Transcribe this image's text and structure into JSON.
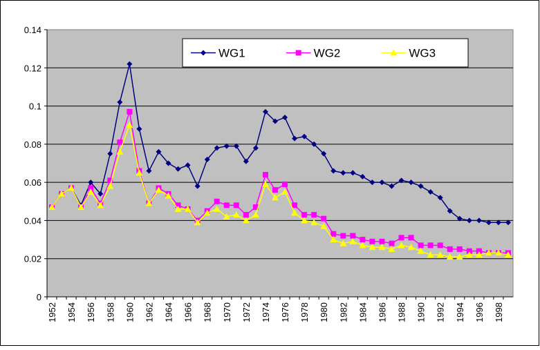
{
  "chart_data": {
    "type": "line",
    "categories": [
      "1952",
      null,
      "1954",
      null,
      "1956",
      null,
      "1958",
      null,
      "1960",
      null,
      "1962",
      null,
      "1964",
      null,
      "1966",
      null,
      "1968",
      null,
      "1970",
      null,
      "1972",
      null,
      "1974",
      null,
      "1976",
      null,
      "1978",
      null,
      "1980",
      null,
      "1982",
      null,
      "1984",
      null,
      "1986",
      null,
      "1988",
      null,
      "1990",
      null,
      "1992",
      null,
      "1994",
      null,
      "1996",
      null,
      "1998",
      null
    ],
    "series": [
      {
        "name": "WG1",
        "color": "#000080",
        "marker": "diamond",
        "values": [
          0.047,
          0.054,
          0.057,
          0.048,
          0.06,
          0.054,
          0.075,
          0.102,
          0.122,
          0.088,
          0.066,
          0.076,
          0.07,
          0.067,
          0.069,
          0.058,
          0.072,
          0.078,
          0.079,
          0.079,
          0.071,
          0.078,
          0.097,
          0.092,
          0.094,
          0.083,
          0.084,
          0.08,
          0.075,
          0.066,
          0.065,
          0.065,
          0.063,
          0.06,
          0.06,
          0.058,
          0.061,
          0.06,
          0.058,
          0.055,
          0.052,
          0.045,
          0.041,
          0.04,
          0.04,
          0.039,
          0.039,
          0.039
        ]
      },
      {
        "name": "WG2",
        "color": "#ff00ff",
        "marker": "square",
        "values": [
          0.047,
          0.054,
          0.057,
          0.047,
          0.057,
          0.049,
          0.061,
          0.081,
          0.097,
          0.066,
          0.049,
          0.057,
          0.054,
          0.048,
          0.046,
          0.04,
          0.045,
          0.05,
          0.048,
          0.048,
          0.043,
          0.047,
          0.064,
          0.056,
          0.059,
          0.048,
          0.043,
          0.043,
          0.041,
          0.033,
          0.032,
          0.032,
          0.03,
          0.029,
          0.029,
          0.028,
          0.031,
          0.031,
          0.027,
          0.027,
          0.027,
          0.025,
          0.025,
          0.024,
          0.024,
          0.023,
          0.023,
          0.023
        ]
      },
      {
        "name": "WG3",
        "color": "#ffff00",
        "marker": "triangle",
        "values": [
          0.047,
          0.054,
          0.057,
          0.047,
          0.055,
          0.048,
          0.058,
          0.076,
          0.09,
          0.065,
          0.049,
          0.056,
          0.053,
          0.046,
          0.046,
          0.039,
          0.044,
          0.046,
          0.042,
          0.043,
          0.04,
          0.043,
          0.059,
          0.052,
          0.055,
          0.044,
          0.04,
          0.039,
          0.037,
          0.03,
          0.028,
          0.029,
          0.027,
          0.026,
          0.026,
          0.025,
          0.027,
          0.026,
          0.024,
          0.022,
          0.022,
          0.021,
          0.021,
          0.022,
          0.022,
          0.023,
          0.023,
          0.022
        ]
      }
    ],
    "ylim": [
      0,
      0.14
    ],
    "yticks": [
      0,
      0.02,
      0.04,
      0.06,
      0.08,
      0.1,
      0.12,
      0.14
    ],
    "grid": true,
    "legend": "top"
  }
}
